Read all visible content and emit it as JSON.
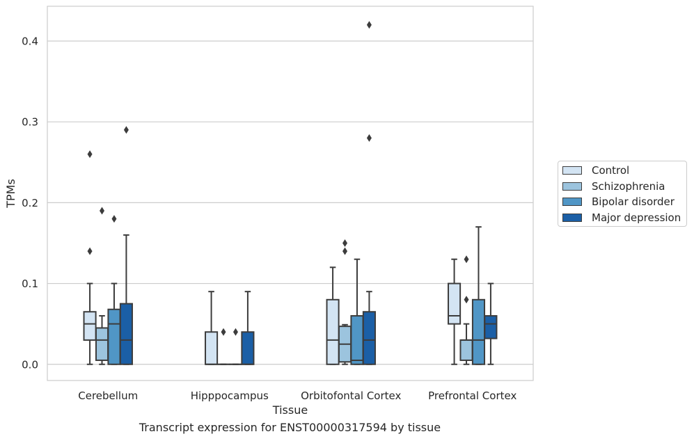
{
  "chart_data": {
    "type": "box",
    "caption": "Transcript expression for ENST00000317594 by tissue",
    "xlabel": "Tissue",
    "ylabel": "TPMs",
    "ylim": [
      -0.02,
      0.443
    ],
    "yticks": [
      "0.0",
      "0.1",
      "0.2",
      "0.3",
      "0.4"
    ],
    "ytick_values": [
      0,
      0.1,
      0.2,
      0.3,
      0.4
    ],
    "grid": "horizontal",
    "legend_position": "right",
    "categories": [
      "Cerebellum",
      "Hipppocampus",
      "Orbitofontal Cortex",
      "Prefrontal Cortex"
    ],
    "series": [
      {
        "name": "Control",
        "color": "#d3e4f3",
        "boxes": [
          {
            "whislo": 0,
            "q1": 0.03,
            "med": 0.05,
            "q3": 0.065,
            "whishi": 0.1,
            "fliers": [
              0.14,
              0.26
            ]
          },
          {
            "whislo": 0,
            "q1": 0,
            "med": 0,
            "q3": 0.04,
            "whishi": 0.09,
            "fliers": []
          },
          {
            "whislo": 0,
            "q1": 0,
            "med": 0.03,
            "q3": 0.08,
            "whishi": 0.12,
            "fliers": []
          },
          {
            "whislo": 0,
            "q1": 0.05,
            "med": 0.06,
            "q3": 0.1,
            "whishi": 0.13,
            "fliers": []
          }
        ]
      },
      {
        "name": "Schizophrenia",
        "color": "#9cc4de",
        "boxes": [
          {
            "whislo": 0,
            "q1": 0.005,
            "med": 0.03,
            "q3": 0.045,
            "whishi": 0.06,
            "fliers": [
              0.19
            ]
          },
          {
            "whislo": 0,
            "q1": 0,
            "med": 0,
            "q3": 0,
            "whishi": 0,
            "fliers": [
              0.04
            ]
          },
          {
            "whislo": 0,
            "q1": 0.003,
            "med": 0.025,
            "q3": 0.047,
            "whishi": 0.049,
            "fliers": [
              0.14,
              0.15
            ]
          },
          {
            "whislo": 0,
            "q1": 0.005,
            "med": 0.03,
            "q3": 0.03,
            "whishi": 0.05,
            "fliers": [
              0.08,
              0.13
            ]
          }
        ]
      },
      {
        "name": "Bipolar disorder",
        "color": "#5096c6",
        "boxes": [
          {
            "whislo": 0,
            "q1": 0,
            "med": 0.05,
            "q3": 0.068,
            "whishi": 0.1,
            "fliers": [
              0.18
            ]
          },
          {
            "whislo": 0,
            "q1": 0,
            "med": 0,
            "q3": 0,
            "whishi": 0,
            "fliers": [
              0.04
            ]
          },
          {
            "whislo": 0,
            "q1": 0,
            "med": 0.005,
            "q3": 0.06,
            "whishi": 0.13,
            "fliers": []
          },
          {
            "whislo": 0,
            "q1": 0,
            "med": 0.03,
            "q3": 0.08,
            "whishi": 0.17,
            "fliers": []
          }
        ]
      },
      {
        "name": "Major depression",
        "color": "#1b5fa6",
        "boxes": [
          {
            "whislo": 0,
            "q1": 0,
            "med": 0.03,
            "q3": 0.075,
            "whishi": 0.16,
            "fliers": [
              0.29
            ]
          },
          {
            "whislo": 0,
            "q1": 0,
            "med": 0,
            "q3": 0.04,
            "whishi": 0.09,
            "fliers": []
          },
          {
            "whislo": 0,
            "q1": 0,
            "med": 0.03,
            "q3": 0.065,
            "whishi": 0.09,
            "fliers": [
              0.28,
              0.42
            ]
          },
          {
            "whislo": 0,
            "q1": 0.032,
            "med": 0.05,
            "q3": 0.06,
            "whishi": 0.1,
            "fliers": []
          }
        ]
      }
    ]
  }
}
